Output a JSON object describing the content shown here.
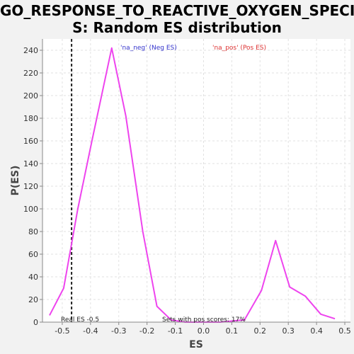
{
  "title_line1": "GO_RESPONSE_TO_REACTIVE_OXYGEN_SPECIE",
  "title_line2": "S: Random ES distribution",
  "chart_data": {
    "type": "line",
    "xlabel": "ES",
    "ylabel": "P(ES)",
    "xlim": [
      -0.57,
      0.52
    ],
    "ylim": [
      0,
      250
    ],
    "xticks": [
      -0.5,
      -0.4,
      -0.3,
      -0.2,
      -0.1,
      0.0,
      0.1,
      0.2,
      0.3,
      0.4,
      0.5
    ],
    "xtick_labels": [
      "-0.5",
      "-0.4",
      "-0.3",
      "-0.2",
      "-0.1",
      "0.0",
      "0.1",
      "0.2",
      "0.3",
      "0.4",
      "0.5"
    ],
    "yticks": [
      0,
      20,
      40,
      60,
      80,
      100,
      120,
      140,
      160,
      180,
      200,
      220,
      240
    ],
    "grid": true,
    "series": [
      {
        "color": "#ee44ee",
        "x": [
          -0.545,
          -0.495,
          -0.445,
          -0.395,
          -0.325,
          -0.275,
          -0.215,
          -0.165,
          -0.115,
          -0.065,
          0.0,
          0.06,
          0.145,
          0.205,
          0.255,
          0.305,
          0.36,
          0.415,
          0.465
        ],
        "y": [
          6,
          30,
          100,
          160,
          242,
          182,
          80,
          14,
          2,
          0,
          0,
          0,
          2,
          28,
          72,
          31,
          23,
          7,
          3
        ]
      }
    ],
    "real_es": -0.467,
    "real_es_label": "Real ES -0.5",
    "sets_note": "Sets with pos scores: 17%",
    "legend": [
      {
        "text": "'na_neg' (Neg ES)",
        "color": "#3333cc"
      },
      {
        "text": "'na_pos' (Pos ES)",
        "color": "#dd3333"
      }
    ]
  }
}
